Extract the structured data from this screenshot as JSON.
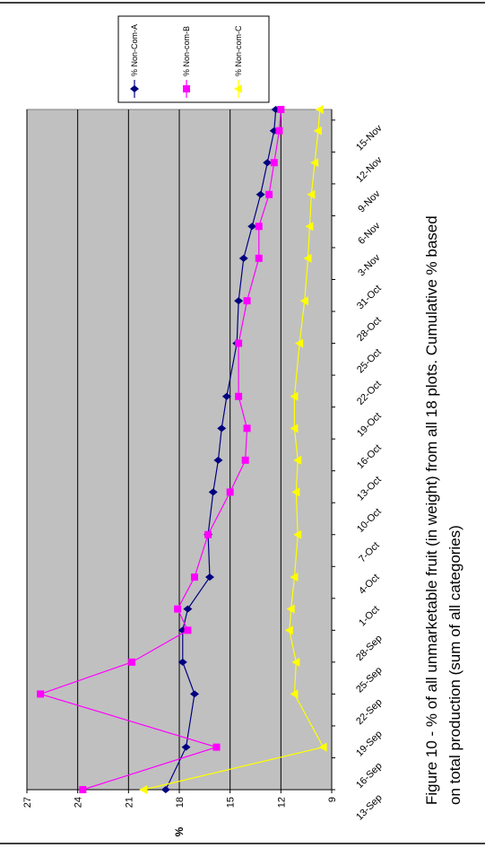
{
  "chart_data": {
    "type": "line",
    "caption": [
      "Figure 10 - % of all unmarketable fruit (in weight) from all 18 plots. Cumulative % based",
      "on total production (sum of all categories)"
    ],
    "y_label": "%",
    "x": [
      "13-Sep",
      "17-Sep",
      "22-Sep",
      "25-Sep",
      "28-Sep",
      "30-Sep",
      "3-Oct",
      "7-Oct",
      "11-Oct",
      "14-Oct",
      "17-Oct",
      "20-Oct",
      "25-Oct",
      "29-Oct",
      "2-Nov",
      "5-Nov",
      "8-Nov",
      "11-Nov",
      "14-Nov",
      "16-Nov"
    ],
    "xlim": [
      "13-Sep",
      "16-Nov"
    ],
    "xticks": [
      "13-Sep",
      "16-Sep",
      "19-Sep",
      "22-Sep",
      "25-Sep",
      "28-Sep",
      "1-Oct",
      "4-Oct",
      "7-Oct",
      "10-Oct",
      "13-Oct",
      "16-Oct",
      "19-Oct",
      "22-Oct",
      "25-Oct",
      "28-Oct",
      "31-Oct",
      "3-Nov",
      "6-Nov",
      "9-Nov",
      "12-Nov",
      "15-Nov"
    ],
    "ylim": [
      9,
      27
    ],
    "yticks": [
      9,
      12,
      15,
      18,
      21,
      24,
      27
    ],
    "grid": true,
    "plot_background": "#c0c0c0",
    "series": [
      {
        "name": "% Non-Com-A",
        "color": "#000080",
        "marker": "diamond",
        "values": [
          18.8,
          17.6,
          17.1,
          17.8,
          17.8,
          17.5,
          16.2,
          16.3,
          16.0,
          15.7,
          15.5,
          15.2,
          14.6,
          14.5,
          14.2,
          13.7,
          13.2,
          12.8,
          12.4,
          12.3
        ]
      },
      {
        "name": "% Non-com-B",
        "color": "#ff00ff",
        "marker": "square",
        "values": [
          23.7,
          15.8,
          26.2,
          20.8,
          17.5,
          18.1,
          17.1,
          16.3,
          15.0,
          14.1,
          14.0,
          14.5,
          14.5,
          14.0,
          13.3,
          13.3,
          12.7,
          12.4,
          12.1,
          12.0
        ]
      },
      {
        "name": "% Non-com-C",
        "color": "#ffff00",
        "marker": "triangle",
        "values": [
          20.1,
          9.5,
          11.2,
          11.1,
          11.5,
          11.4,
          11.2,
          11.0,
          11.1,
          11.0,
          11.2,
          11.2,
          10.9,
          10.6,
          10.4,
          10.3,
          10.2,
          10.0,
          9.8,
          9.7
        ]
      }
    ]
  }
}
